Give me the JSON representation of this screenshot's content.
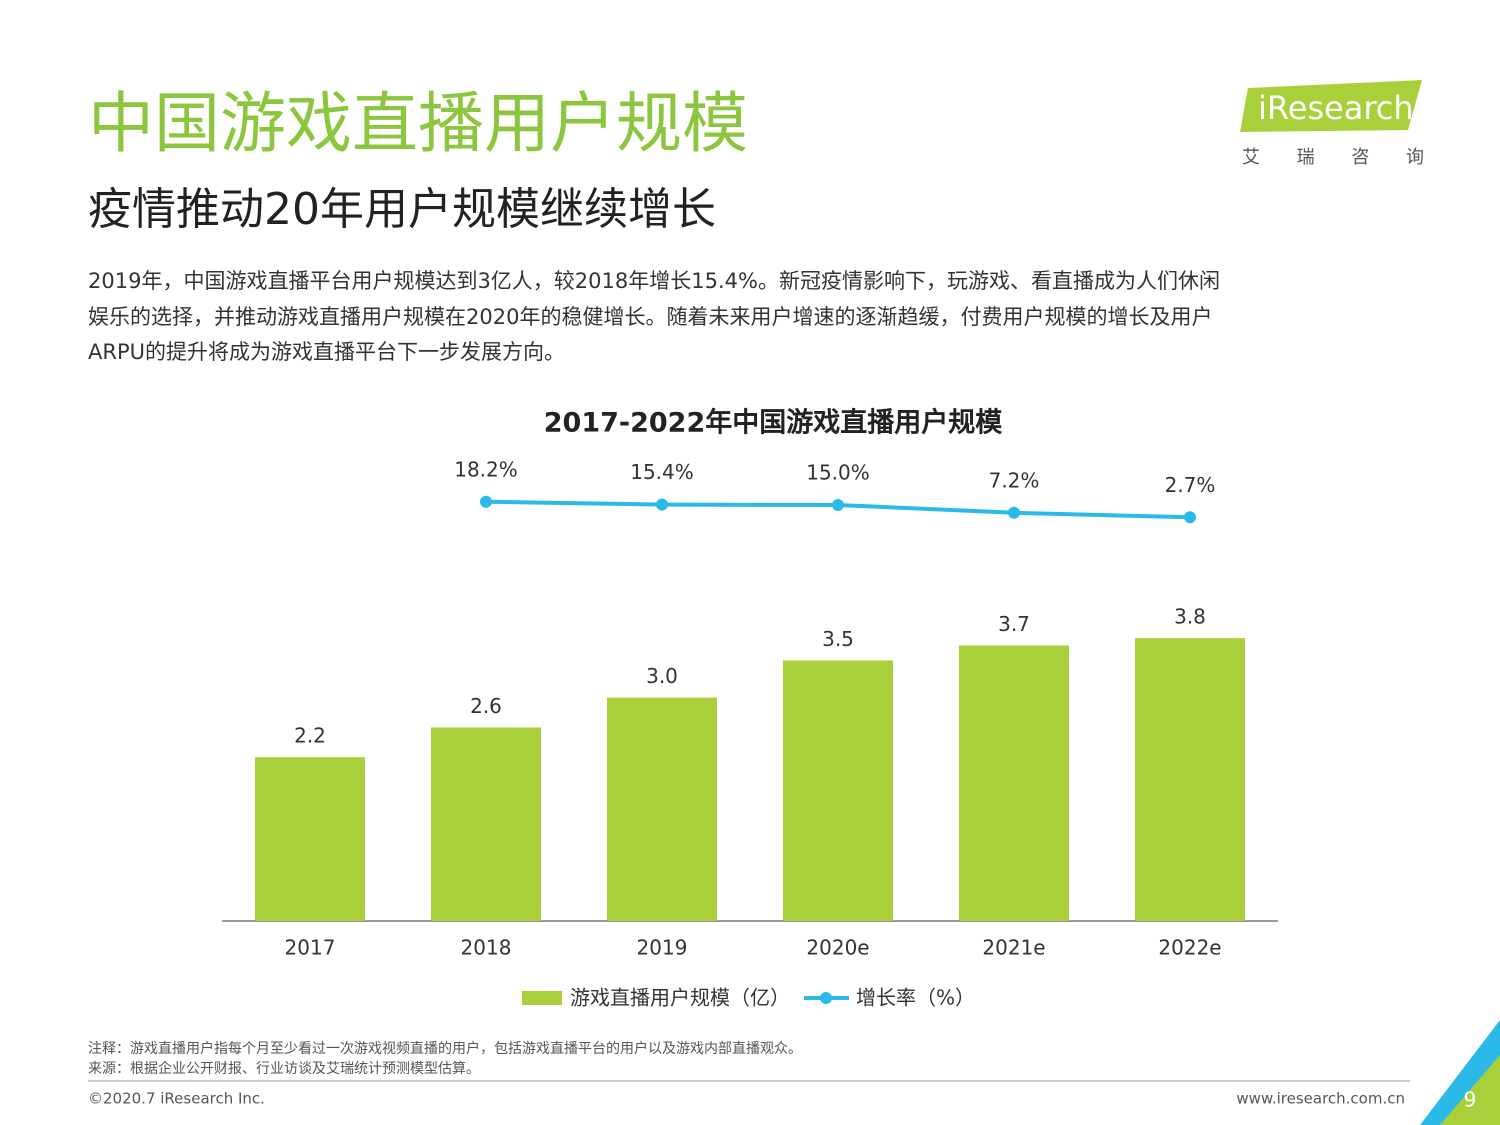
{
  "header": {
    "title": "中国游戏直播用户规模",
    "subtitle": "疫情推动20年用户规模继续增长",
    "body": [
      "2019年，中国游戏直播平台用户规模达到3亿人，较2018年增长15.4%。新冠疫情影响下，玩游戏、看直播成为人们休闲",
      "娱乐的选择，并推动游戏直播用户规模在2020年的稳健增长。随着未来用户增速的逐渐趋缓，付费用户规模的增长及用户",
      "ARPU的提升将成为游戏直播平台下一步发展方向。"
    ]
  },
  "logo": {
    "name": "iResearch",
    "cn": "艾 瑞 咨 询"
  },
  "chart_data": {
    "type": "bar",
    "title": "2017-2022年中国游戏直播用户规模",
    "categories": [
      "2017",
      "2018",
      "2019",
      "2020e",
      "2021e",
      "2022e"
    ],
    "series": [
      {
        "name": "游戏直播用户规模（亿）",
        "type": "bar",
        "color": "#a9d03a",
        "values": [
          2.2,
          2.6,
          3.0,
          3.5,
          3.7,
          3.8
        ],
        "value_labels": [
          "2.2",
          "2.6",
          "3.0",
          "3.5",
          "3.7",
          "3.8"
        ]
      },
      {
        "name": "增长率（%）",
        "type": "line",
        "axis": "y2",
        "color": "#2bb9e8",
        "values": [
          null,
          18.2,
          15.4,
          15.0,
          7.2,
          2.7
        ],
        "value_labels": [
          null,
          "18.2%",
          "15.4%",
          "15.0%",
          "7.2%",
          "2.7%"
        ]
      }
    ],
    "ylim": [
      0,
      4.5
    ],
    "y2lim": [
      -60,
      60
    ],
    "legend": "bottom"
  },
  "footer": {
    "note": "注释：游戏直播用户指每个月至少看过一次游戏视频直播的用户，包括游戏直播平台的用户以及游戏内部直播观众。",
    "source": "来源：根据企业公开财报、行业访谈及艾瑞统计预测模型估算。",
    "copyright": "©2020.7 iResearch Inc.",
    "url": "www.iresearch.com.cn",
    "page": "9"
  }
}
